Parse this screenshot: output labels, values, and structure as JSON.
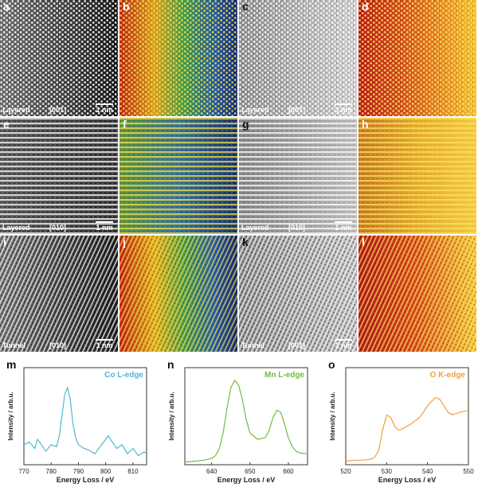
{
  "panels": [
    {
      "letter": "a",
      "caption": "Layered",
      "zone": "[001]",
      "scale": "1 nm",
      "style": "gray"
    },
    {
      "letter": "b",
      "caption": "",
      "zone": "",
      "scale": "",
      "style": "color-rb"
    },
    {
      "letter": "c",
      "caption": "Layered",
      "zone": "[001]",
      "scale": "1 nm",
      "style": "gray-light"
    },
    {
      "letter": "d",
      "caption": "",
      "zone": "",
      "scale": "",
      "style": "color-ry"
    },
    {
      "letter": "e",
      "caption": "Layered",
      "zone": "[010]",
      "scale": "1 nm",
      "style": "gray-stripe"
    },
    {
      "letter": "f",
      "caption": "",
      "zone": "",
      "scale": "",
      "style": "color-stripe-gb"
    },
    {
      "letter": "g",
      "caption": "Layered",
      "zone": "[010]",
      "scale": "1 nm",
      "style": "gray-stripe-light"
    },
    {
      "letter": "h",
      "caption": "",
      "zone": "",
      "scale": "",
      "style": "color-stripe-y"
    },
    {
      "letter": "i",
      "caption": "Tunnel",
      "zone": "[010]",
      "scale": "1 nm",
      "style": "gray-diag"
    },
    {
      "letter": "j",
      "caption": "",
      "zone": "",
      "scale": "",
      "style": "color-diag-rb"
    },
    {
      "letter": "k",
      "caption": "Tunnel",
      "zone": "[001]",
      "scale": "1 nm",
      "style": "gray-diag-light"
    },
    {
      "letter": "l",
      "caption": "",
      "zone": "",
      "scale": "",
      "style": "color-diag-ry"
    }
  ],
  "chart_data": [
    {
      "type": "line",
      "panel": "m",
      "title": "Co L-edge",
      "color": "#4fb7d6",
      "xlabel": "Energy Loss / eV",
      "ylabel": "Intensity / arb.u.",
      "xlim": [
        770,
        815
      ],
      "ylim": [
        0,
        1
      ],
      "xticks": [
        770,
        780,
        790,
        800,
        810
      ],
      "x": [
        770,
        772,
        774,
        775,
        776,
        778,
        780,
        782,
        783,
        784,
        785,
        786,
        787,
        788,
        789,
        790,
        792,
        794,
        796,
        798,
        800,
        801,
        802,
        804,
        806,
        808,
        810,
        812,
        814,
        815
      ],
      "y": [
        0.22,
        0.25,
        0.18,
        0.28,
        0.24,
        0.15,
        0.22,
        0.2,
        0.32,
        0.55,
        0.78,
        0.85,
        0.72,
        0.45,
        0.3,
        0.22,
        0.18,
        0.16,
        0.12,
        0.2,
        0.28,
        0.32,
        0.27,
        0.18,
        0.22,
        0.12,
        0.18,
        0.1,
        0.14,
        0.13
      ]
    },
    {
      "type": "line",
      "panel": "n",
      "title": "Mn L-edge",
      "color": "#6fbd44",
      "xlabel": "Energy Loss / eV",
      "ylabel": "Intensity / arb.u.",
      "xlim": [
        633,
        665
      ],
      "ylim": [
        0,
        1
      ],
      "xticks": [
        640,
        650,
        660
      ],
      "x": [
        633,
        636,
        638,
        640,
        641,
        642,
        643,
        644,
        645,
        646,
        647,
        648,
        649,
        650,
        652,
        654,
        655,
        656,
        657,
        658,
        659,
        660,
        661,
        662,
        663,
        665
      ],
      "y": [
        0.03,
        0.04,
        0.05,
        0.07,
        0.1,
        0.18,
        0.35,
        0.62,
        0.85,
        0.93,
        0.88,
        0.72,
        0.5,
        0.35,
        0.28,
        0.3,
        0.38,
        0.52,
        0.6,
        0.58,
        0.45,
        0.3,
        0.2,
        0.15,
        0.13,
        0.12
      ]
    },
    {
      "type": "line",
      "panel": "o",
      "title": "O K-edge",
      "color": "#f0a040",
      "xlabel": "Energy Loss / eV",
      "ylabel": "Intensity / arb.u.",
      "xlim": [
        520,
        550
      ],
      "ylim": [
        0,
        1
      ],
      "xticks": [
        520,
        530,
        540,
        550
      ],
      "x": [
        520,
        522,
        524,
        526,
        527,
        528,
        529,
        530,
        531,
        532,
        533,
        534,
        536,
        538,
        539,
        540,
        541,
        542,
        543,
        544,
        545,
        546,
        548,
        550
      ],
      "y": [
        0.04,
        0.05,
        0.05,
        0.06,
        0.08,
        0.15,
        0.38,
        0.55,
        0.52,
        0.42,
        0.38,
        0.4,
        0.45,
        0.52,
        0.58,
        0.65,
        0.7,
        0.74,
        0.72,
        0.65,
        0.58,
        0.55,
        0.58,
        0.6
      ]
    }
  ]
}
